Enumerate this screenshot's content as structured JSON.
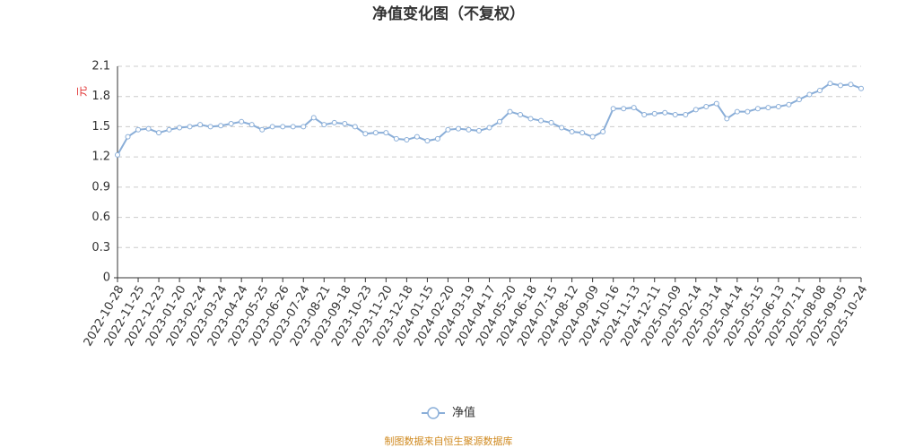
{
  "chart_data": {
    "type": "line",
    "title": "净值变化图（不复权）",
    "y_label": "元",
    "footer": "制图数据来自恒生聚源数据库",
    "categories": [
      "2022-10-28",
      null,
      "2022-11-25",
      null,
      "2022-12-23",
      null,
      "2023-01-20",
      null,
      "2023-02-24",
      null,
      "2023-03-24",
      null,
      "2023-04-24",
      null,
      "2023-05-25",
      null,
      "2023-06-26",
      null,
      "2023-07-24",
      null,
      "2023-08-21",
      null,
      "2023-09-18",
      null,
      "2023-10-23",
      null,
      "2023-11-20",
      null,
      "2023-12-18",
      null,
      "2024-01-15",
      null,
      "2024-02-20",
      null,
      "2024-03-19",
      null,
      "2024-04-17",
      null,
      "2024-05-20",
      null,
      "2024-06-18",
      null,
      "2024-07-15",
      null,
      "2024-08-12",
      null,
      "2024-09-09",
      null,
      "2024-10-16",
      null,
      "2024-11-13",
      null,
      "2024-12-11",
      null,
      "2025-01-09",
      null,
      "2025-02-14",
      null,
      "2025-03-14",
      null,
      "2025-04-14",
      null,
      "2025-05-15",
      null,
      "2025-06-13",
      null,
      "2025-07-11",
      null,
      "2025-08-08",
      null,
      "2025-09-05",
      null,
      "2025-10-24"
    ],
    "series": [
      {
        "name": "净值",
        "color": "#8aaed8",
        "values": [
          1.22,
          1.4,
          1.47,
          1.48,
          1.44,
          1.47,
          1.49,
          1.5,
          1.52,
          1.5,
          1.51,
          1.53,
          1.55,
          1.52,
          1.47,
          1.5,
          1.5,
          1.5,
          1.5,
          1.59,
          1.52,
          1.54,
          1.53,
          1.5,
          1.43,
          1.44,
          1.44,
          1.38,
          1.37,
          1.4,
          1.36,
          1.38,
          1.47,
          1.48,
          1.47,
          1.46,
          1.49,
          1.55,
          1.65,
          1.62,
          1.58,
          1.56,
          1.54,
          1.49,
          1.45,
          1.44,
          1.4,
          1.45,
          1.68,
          1.68,
          1.69,
          1.62,
          1.63,
          1.64,
          1.62,
          1.62,
          1.67,
          1.7,
          1.73,
          1.58,
          1.65,
          1.65,
          1.68,
          1.69,
          1.7,
          1.72,
          1.77,
          1.82,
          1.86,
          1.93,
          1.91,
          1.92,
          1.88
        ]
      }
    ],
    "ylim": [
      0,
      2.1
    ],
    "yticks": [
      0,
      0.3,
      0.6,
      0.9,
      1.2,
      1.5,
      1.8,
      2.1
    ],
    "grid": true,
    "legend": "bottom"
  }
}
